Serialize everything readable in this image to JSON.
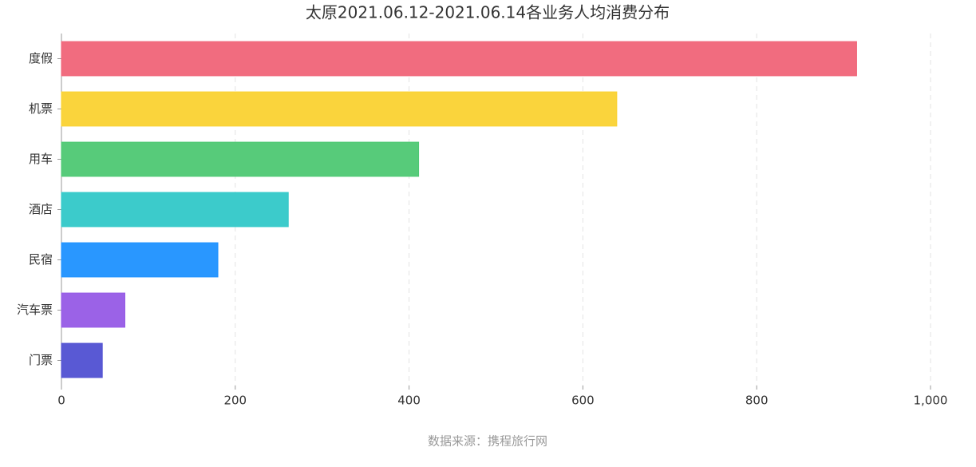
{
  "chart_data": {
    "type": "bar",
    "orientation": "horizontal",
    "title": "太原2021.06.12-2021.06.14各业务人均消费分布",
    "categories": [
      "度假",
      "机票",
      "用车",
      "酒店",
      "民宿",
      "汽车票",
      "门票"
    ],
    "values": [
      915,
      639,
      411,
      261,
      180,
      73,
      47
    ],
    "colors": [
      "#f06478",
      "#fad232",
      "#4ec873",
      "#32c8c8",
      "#1e91ff",
      "#965ae6",
      "#5050d2"
    ],
    "xlim": [
      0,
      1000
    ],
    "xticks": [
      0,
      200,
      400,
      600,
      800,
      {
        "value": 1000,
        "label": "1,000"
      }
    ],
    "grid": true,
    "source": "数据来源：携程旅行网"
  }
}
